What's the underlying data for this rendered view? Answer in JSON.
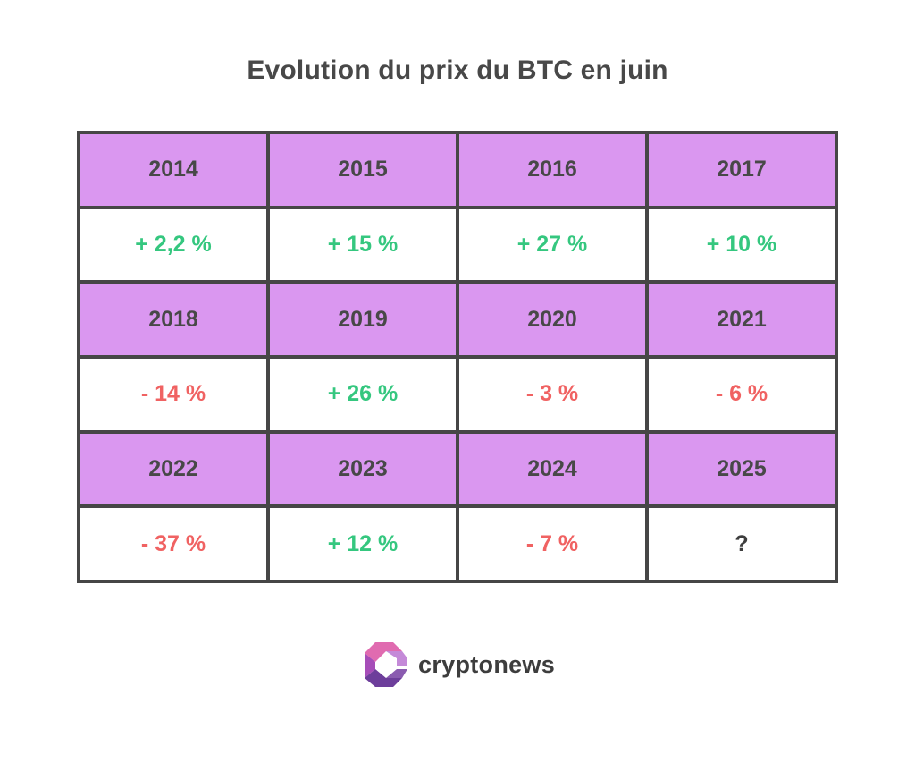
{
  "title": "Evolution du prix du BTC en juin",
  "chart_data": {
    "type": "table",
    "title": "Evolution du prix du BTC en juin",
    "rows": [
      {
        "years": [
          "2014",
          "2015",
          "2016",
          "2017"
        ],
        "values": [
          {
            "label": "+ 2,2 %",
            "sign": "pos"
          },
          {
            "label": "+ 15 %",
            "sign": "pos"
          },
          {
            "label": "+ 27 %",
            "sign": "pos"
          },
          {
            "label": "+ 10 %",
            "sign": "pos"
          }
        ]
      },
      {
        "years": [
          "2018",
          "2019",
          "2020",
          "2021"
        ],
        "values": [
          {
            "label": "- 14 %",
            "sign": "neg"
          },
          {
            "label": "+ 26 %",
            "sign": "pos"
          },
          {
            "label": "- 3 %",
            "sign": "neg"
          },
          {
            "label": "- 6 %",
            "sign": "neg"
          }
        ]
      },
      {
        "years": [
          "2022",
          "2023",
          "2024",
          "2025"
        ],
        "values": [
          {
            "label": "- 37 %",
            "sign": "neg"
          },
          {
            "label": "+ 12 %",
            "sign": "pos"
          },
          {
            "label": "- 7 %",
            "sign": "neg"
          },
          {
            "label": "?",
            "sign": "unk"
          }
        ]
      }
    ],
    "colors": {
      "header_bg": "#da97f0",
      "positive": "#35c77f",
      "negative": "#f06262",
      "unknown": "#3e3e3e",
      "border": "#464646"
    }
  },
  "logo": {
    "text": "cryptonews",
    "icon": "cryptonews-logo-icon"
  }
}
